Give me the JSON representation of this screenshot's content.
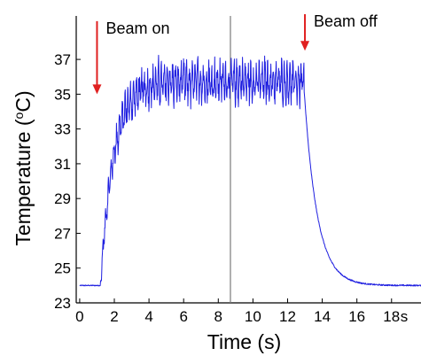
{
  "chart_data": {
    "type": "line",
    "title": "",
    "xlabel": "Time (s)",
    "ylabel_main": "Temperature (",
    "ylabel_sup": "o",
    "ylabel_end": "C)",
    "xlim": [
      -0.2,
      19.7
    ],
    "ylim": [
      23,
      39.5
    ],
    "xticks": [
      "0",
      "2",
      "4",
      "6",
      "8",
      "10",
      "12",
      "14",
      "16",
      "18"
    ],
    "xtick_values": [
      0,
      2,
      4,
      6,
      8,
      10,
      12,
      14,
      16,
      18
    ],
    "xtick_unit": "s",
    "yticks": [
      "23",
      "25",
      "27",
      "29",
      "31",
      "33",
      "35",
      "37"
    ],
    "ytick_values": [
      23,
      25,
      27,
      29,
      31,
      33,
      35,
      37
    ],
    "grid": false,
    "vertical_line_x": 8.7,
    "series_color": "#1f1fe0",
    "annotations": [
      {
        "text": "Beam on",
        "arrow_x": 1.0,
        "arrow_y_top": 39.2,
        "arrow_y_tip": 35.0,
        "color": "#e02020"
      },
      {
        "text": "Beam off",
        "arrow_x": 13.0,
        "arrow_y_top": 39.6,
        "arrow_y_tip": 37.5,
        "color": "#e02020"
      }
    ],
    "series": [
      {
        "baseline": 24.0,
        "plateau_mean": 35.7,
        "oscillation_amplitude": 1.1,
        "rise_start": 1.2,
        "rise_time_constant": 0.75,
        "fall_start": 12.95,
        "fall_time_constant": 0.75,
        "x_end": 19.7,
        "key_points": [
          {
            "x": 0,
            "y": 24.0
          },
          {
            "x": 1.2,
            "y": 24.0
          },
          {
            "x": 1.5,
            "y": 29.3
          },
          {
            "x": 2.0,
            "y": 32.5
          },
          {
            "x": 3.0,
            "y": 34.8
          },
          {
            "x": 5.0,
            "y": 35.6
          },
          {
            "x": 8.0,
            "y": 35.7
          },
          {
            "x": 12.9,
            "y": 35.7
          },
          {
            "x": 13.3,
            "y": 30.0
          },
          {
            "x": 14.0,
            "y": 27.2
          },
          {
            "x": 15.0,
            "y": 25.2
          },
          {
            "x": 16.0,
            "y": 24.5
          },
          {
            "x": 18.0,
            "y": 24.1
          },
          {
            "x": 19.7,
            "y": 24.0
          }
        ]
      }
    ]
  }
}
